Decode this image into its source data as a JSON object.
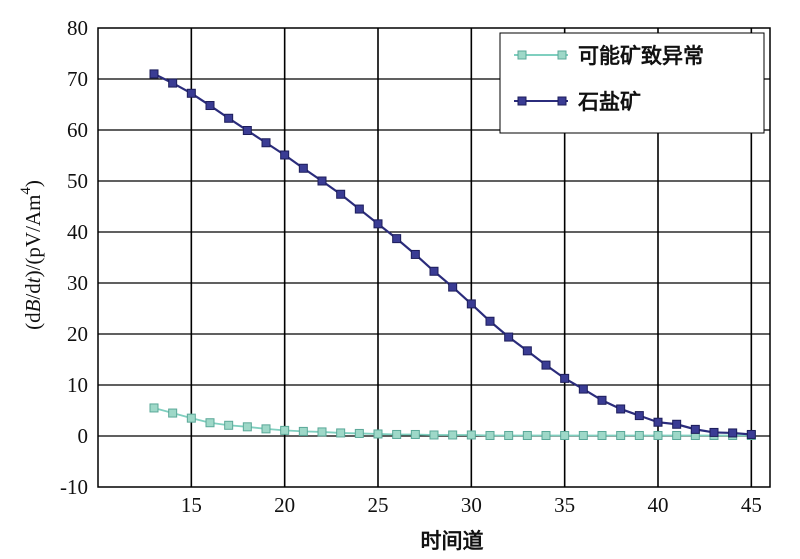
{
  "chart_data": {
    "type": "line",
    "xlabel": "时间道",
    "ylabel": {
      "prefix": "(d",
      "b": "B",
      "mid": "/d",
      "t": "t",
      "suffix": ")/(pV/Am",
      "sup": "4",
      "close": ")"
    },
    "xlim": [
      10,
      46
    ],
    "ylim": [
      -10,
      80
    ],
    "xticks": [
      15,
      20,
      25,
      30,
      35,
      40,
      45
    ],
    "yticks": [
      -10,
      0,
      10,
      20,
      30,
      40,
      50,
      60,
      70,
      80
    ],
    "grid": true,
    "legend_position": "top-right",
    "x": [
      13,
      14,
      15,
      16,
      17,
      18,
      19,
      20,
      21,
      22,
      23,
      24,
      25,
      26,
      27,
      28,
      29,
      30,
      31,
      32,
      33,
      34,
      35,
      36,
      37,
      38,
      39,
      40,
      41,
      42,
      43,
      44,
      45
    ],
    "series": [
      {
        "name": "可能矿致异常",
        "color": "#7fcfbf",
        "marker_color": "#9ed8c8",
        "values": [
          5.5,
          4.5,
          3.5,
          2.6,
          2.1,
          1.8,
          1.4,
          1.1,
          0.9,
          0.8,
          0.6,
          0.5,
          0.4,
          0.3,
          0.3,
          0.2,
          0.2,
          0.2,
          0.1,
          0.1,
          0.1,
          0.1,
          0.1,
          0.1,
          0.1,
          0.1,
          0.1,
          0.1,
          0.1,
          0.1,
          0.1,
          0.1,
          0.1
        ]
      },
      {
        "name": "石盐矿",
        "color": "#2b2c7c",
        "marker_color": "#3a3c94",
        "values": [
          71.0,
          69.2,
          67.2,
          64.8,
          62.3,
          59.9,
          57.5,
          55.1,
          52.5,
          50.0,
          47.4,
          44.5,
          41.6,
          38.7,
          35.6,
          32.3,
          29.2,
          25.9,
          22.5,
          19.4,
          16.7,
          13.9,
          11.3,
          9.2,
          7.0,
          5.3,
          4.0,
          2.7,
          2.3,
          1.3,
          0.7,
          0.6,
          0.3
        ]
      }
    ]
  }
}
